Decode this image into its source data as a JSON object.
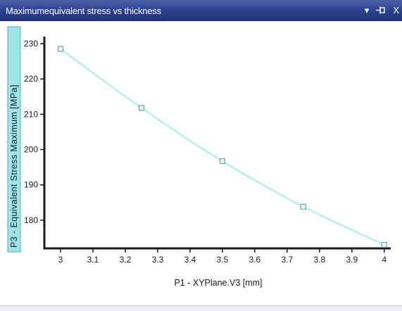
{
  "window": {
    "title": "Maximumequivalent stress vs thickness",
    "controls": {
      "dropdown_glyph": "▾",
      "pin_icon": "pin-icon",
      "close_glyph": "X"
    }
  },
  "chart_data": {
    "type": "line",
    "title": "",
    "xlabel": "P1 - XYPlane.V3  [mm]",
    "ylabel": "P3 - Equivalent Stress Maximum  [MPa]",
    "x": [
      3,
      3.25,
      3.5,
      3.75,
      4
    ],
    "series": [
      {
        "values": [
          228.5,
          211.8,
          196.7,
          183.8,
          173.0
        ]
      }
    ],
    "xlim": [
      2.95,
      4.02
    ],
    "ylim": [
      172,
      232
    ],
    "xticks": [
      3,
      3.1,
      3.2,
      3.3,
      3.4,
      3.5,
      3.6,
      3.7,
      3.8,
      3.9,
      4
    ],
    "xtick_labels": [
      "3",
      "3.1",
      "3.2",
      "3.3",
      "3.4",
      "3.5",
      "3.6",
      "3.7",
      "3.8",
      "3.9",
      "4"
    ],
    "yticks": [
      180,
      190,
      200,
      210,
      220,
      230
    ],
    "ytick_labels": [
      "180",
      "190",
      "200",
      "210",
      "220",
      "230"
    ],
    "grid": false,
    "colors": {
      "line": "#bff0f0",
      "marker_edge": "#6aa6b0",
      "marker_fill": "#e8fbfb",
      "axis": "#1a1a1a",
      "ylabel_box": "#9ee6e6"
    }
  }
}
